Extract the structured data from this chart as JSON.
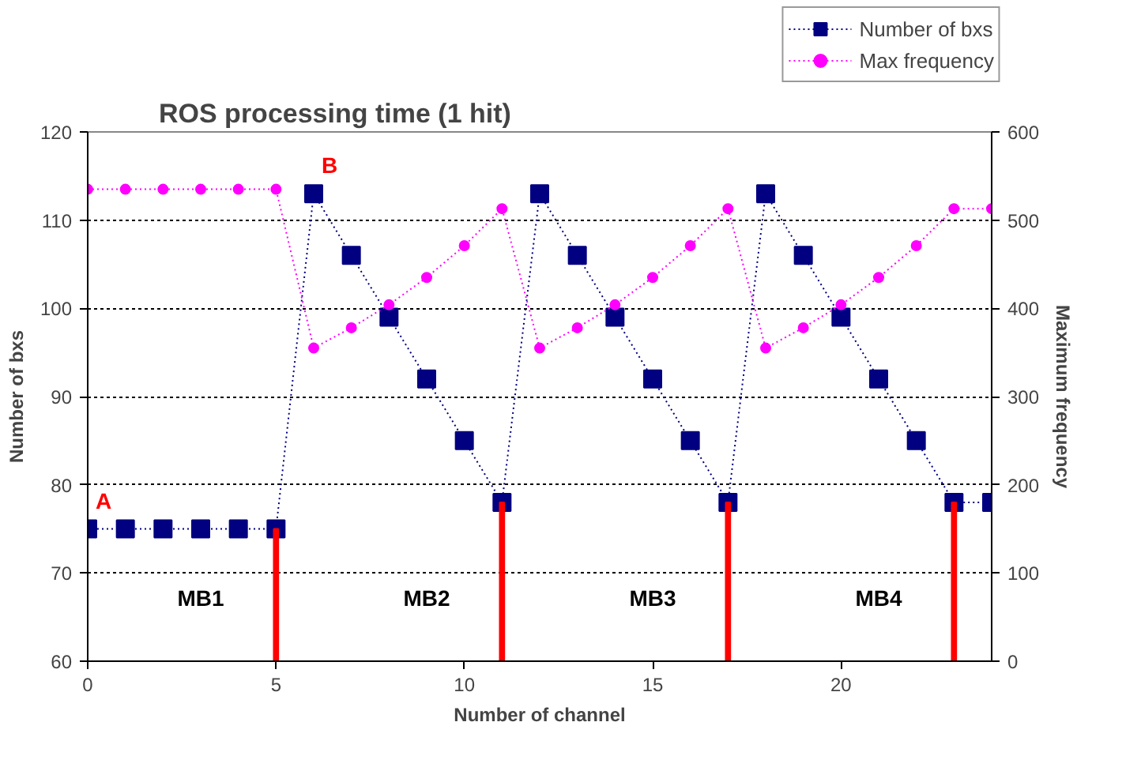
{
  "chart_data": {
    "type": "line",
    "title": "ROS processing time (1 hit)",
    "xlabel": "Number of channel",
    "ylabel": "Number of bxs",
    "y2label": "Maximum frequency",
    "x": [
      0,
      1,
      2,
      3,
      4,
      5,
      6,
      7,
      8,
      9,
      10,
      11,
      12,
      13,
      14,
      15,
      16,
      17,
      18,
      19,
      20,
      21,
      22,
      23,
      24
    ],
    "series": [
      {
        "name": "Number of bxs",
        "color": "#000080",
        "marker": "square",
        "line_style": "dotted",
        "values": [
          75,
          75,
          75,
          75,
          75,
          75,
          113,
          106,
          99,
          92,
          85,
          78,
          113,
          106,
          99,
          92,
          85,
          78,
          113,
          106,
          99,
          92,
          85,
          78,
          78
        ]
      },
      {
        "name": "Max frequency",
        "color": "#ff00ff",
        "marker": "circle",
        "line_style": "dotted",
        "axis": "y2",
        "values": [
          535,
          535,
          535,
          535,
          535,
          535,
          355,
          378,
          404,
          435,
          471,
          513,
          355,
          378,
          404,
          435,
          471,
          513,
          355,
          378,
          404,
          435,
          471,
          513,
          513
        ]
      },
      {
        "type": "bar",
        "color": "#ff0000",
        "x": [
          5,
          11,
          17,
          23
        ],
        "values": [
          75,
          78,
          78,
          78
        ]
      }
    ],
    "xlim": [
      0,
      24
    ],
    "xticks": [
      0,
      5,
      10,
      15,
      20
    ],
    "ylim": [
      60,
      120
    ],
    "yticks": [
      60,
      70,
      80,
      90,
      100,
      110,
      120
    ],
    "y2lim": [
      0,
      600
    ],
    "y2ticks": [
      0,
      100,
      200,
      300,
      400,
      500,
      600
    ],
    "grid": "y",
    "legend": "top right",
    "annotations": [
      {
        "text": "A",
        "x": 0,
        "y": 75
      },
      {
        "text": "B",
        "x": 6,
        "y": 113
      },
      "MB1",
      "MB2",
      "MB3",
      "MB4"
    ]
  }
}
